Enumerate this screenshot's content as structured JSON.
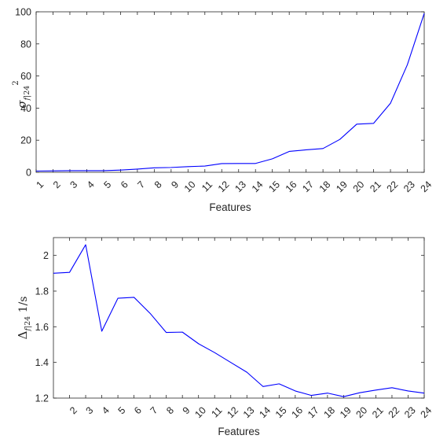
{
  "chart_data": [
    {
      "type": "line",
      "xlabel": "Features",
      "ylabel": "σ_{f|24}^2",
      "ylim": [
        0,
        100
      ],
      "xlim": [
        1,
        24
      ],
      "yticks": [
        "0",
        "20",
        "40",
        "60",
        "80",
        "100"
      ],
      "x_tick_labels": [
        "1",
        "2",
        "3",
        "4",
        "5",
        "6",
        "7",
        "8",
        "9",
        "10",
        "11",
        "12",
        "13",
        "14",
        "15",
        "16",
        "17",
        "18",
        "19",
        "20",
        "21",
        "22",
        "23",
        "24"
      ],
      "grid": false,
      "series": [
        {
          "color": "#0000ff",
          "x": [
            1,
            2,
            3,
            4,
            5,
            6,
            7,
            8,
            9,
            10,
            11,
            12,
            13,
            14,
            15,
            16,
            17,
            18,
            19,
            20,
            21,
            22,
            23,
            24
          ],
          "values": [
            0.8,
            0.9,
            1.0,
            1.0,
            1.0,
            1.4,
            2.0,
            2.8,
            3.0,
            3.5,
            3.9,
            5.4,
            5.5,
            5.5,
            8.4,
            13.0,
            14.0,
            14.8,
            20.5,
            30.0,
            30.5,
            43.0,
            67.0,
            99.0
          ]
        }
      ]
    },
    {
      "type": "line",
      "xlabel": "Features",
      "ylabel": "Δ_{f|24} 1/s",
      "ylim": [
        1.2,
        2.1
      ],
      "xlim": [
        1,
        24
      ],
      "yticks": [
        "1.2",
        "1.4",
        "1.6",
        "1.8",
        "2"
      ],
      "x_tick_labels": [
        "2",
        "3",
        "4",
        "5",
        "6",
        "7",
        "8",
        "9",
        "10",
        "11",
        "12",
        "13",
        "14",
        "15",
        "16",
        "17",
        "18",
        "19",
        "20",
        "21",
        "22",
        "23",
        "24"
      ],
      "grid": false,
      "series": [
        {
          "color": "#0000ff",
          "x": [
            1,
            2,
            3,
            4,
            5,
            6,
            7,
            8,
            9,
            10,
            11,
            12,
            13,
            14,
            15,
            16,
            17,
            18,
            19,
            20,
            21,
            22,
            23,
            24
          ],
          "values": [
            1.9,
            1.905,
            2.06,
            1.575,
            1.76,
            1.765,
            1.675,
            1.568,
            1.57,
            1.505,
            1.455,
            1.4,
            1.345,
            1.265,
            1.28,
            1.24,
            1.215,
            1.228,
            1.208,
            1.23,
            1.245,
            1.258,
            1.24,
            1.228
          ]
        }
      ]
    }
  ]
}
